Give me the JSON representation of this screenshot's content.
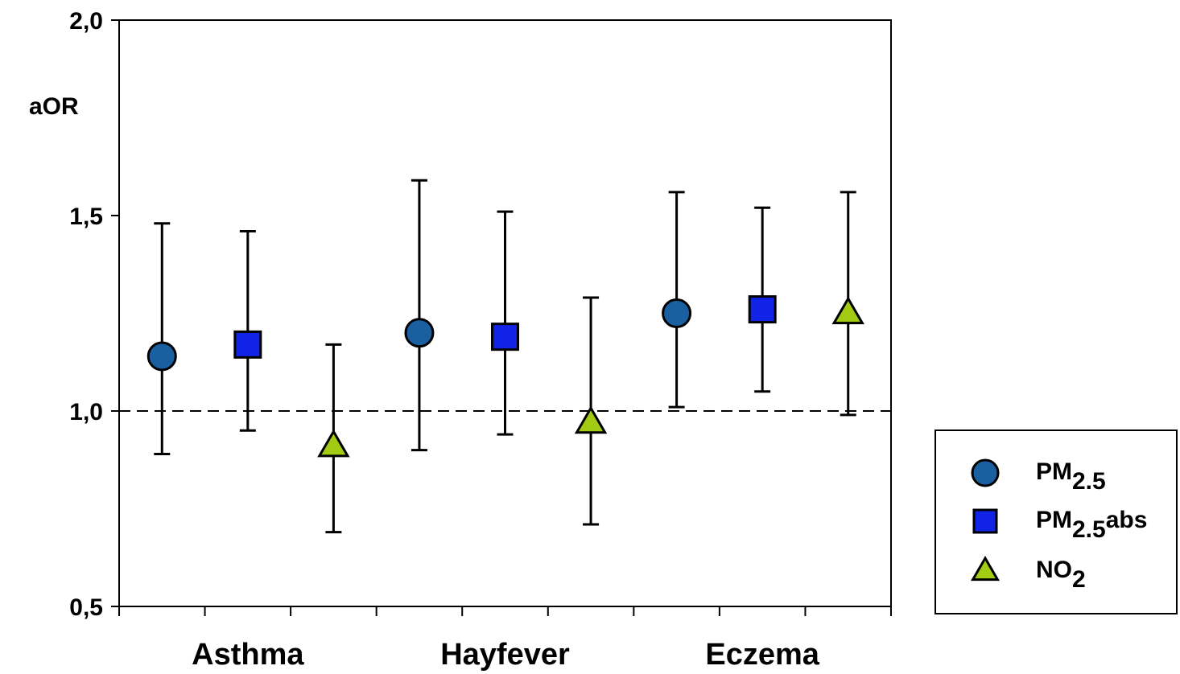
{
  "chart_data": {
    "type": "scatter",
    "ylabel": "aOR",
    "ylim": [
      0.5,
      2.0
    ],
    "yticks": [
      "0,5",
      "1,0",
      "1,5",
      "2,0"
    ],
    "ytick_values": [
      0.5,
      1.0,
      1.5,
      2.0
    ],
    "reference_line": 1.0,
    "categories": [
      "Asthma",
      "Hayfever",
      "Eczema"
    ],
    "legend_position": "right",
    "series": [
      {
        "name": "PM2.5",
        "legend_main": "PM",
        "legend_sub": "2.5",
        "legend_suffix": "",
        "marker": "circle",
        "color": "#1a5fa0",
        "values": [
          1.14,
          1.2,
          1.25
        ],
        "lower": [
          0.89,
          0.9,
          1.01
        ],
        "upper": [
          1.48,
          1.59,
          1.56
        ]
      },
      {
        "name": "PM2.5abs",
        "legend_main": "PM",
        "legend_sub": "2.5",
        "legend_suffix": "abs",
        "marker": "square",
        "color": "#1023e6",
        "values": [
          1.17,
          1.19,
          1.26
        ],
        "lower": [
          0.95,
          0.94,
          1.05
        ],
        "upper": [
          1.46,
          1.51,
          1.52
        ]
      },
      {
        "name": "NO2",
        "legend_main": "NO",
        "legend_sub": "2",
        "legend_suffix": "",
        "marker": "triangle",
        "color": "#a2cc14",
        "values": [
          0.91,
          0.97,
          1.25
        ],
        "lower": [
          0.69,
          0.71,
          0.99
        ],
        "upper": [
          1.17,
          1.29,
          1.56
        ]
      }
    ]
  }
}
